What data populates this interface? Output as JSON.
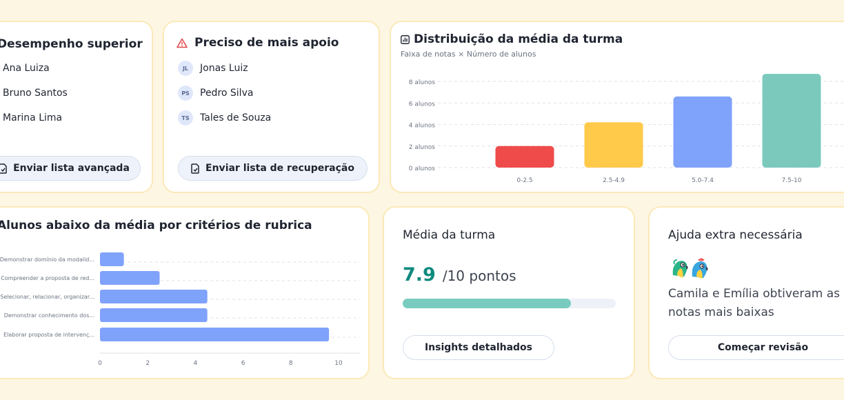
{
  "colors": {
    "page_bg": "#fdf6e3",
    "card_border": "#fbe9b7",
    "accent_teal": "#0f8a7e",
    "progress_fill": "#79cbbf",
    "bar_blue": "#7fa2fb",
    "warn_red": "#e04848"
  },
  "top_performers": {
    "title": "Desempenho superior",
    "students": [
      "Ana Luiza",
      "Bruno Santos",
      "Marina Lima"
    ],
    "button_label": "Enviar lista avançada",
    "button_icon": "document-check-icon"
  },
  "need_support": {
    "title": "Preciso de mais apoio",
    "title_icon": "warning-triangle-icon",
    "students": [
      {
        "initials": "JL",
        "name": "Jonas Luiz"
      },
      {
        "initials": "PS",
        "name": "Pedro Silva"
      },
      {
        "initials": "TS",
        "name": "Tales de Souza"
      }
    ],
    "button_label": "Enviar lista de recuperação",
    "button_icon": "document-check-icon"
  },
  "distribution": {
    "title": "Distribuição da média da turma",
    "title_icon": "bar-chart-icon",
    "subtitle": "Faixa de notas × Número de alunos"
  },
  "rubric": {
    "title": "Alunos abaixo da média por critérios de rubrica"
  },
  "class_average": {
    "title": "Média da turma",
    "score": "7.9",
    "score_suffix": "/10 pontos",
    "progress": 0.79,
    "button_label": "Insights detalhados"
  },
  "extra_help": {
    "title": "Ajuda extra necessária",
    "mascot_icon": "parrot-mascots-icon",
    "message": "Camila e Emília obtiveram as notas mais baixas",
    "button_label": "Começar revisão"
  },
  "chart_data": [
    {
      "type": "bar",
      "categories": [
        "0-2.5",
        "2.5-4.9",
        "5.0-7.4",
        "7.5-10"
      ],
      "values": [
        2,
        4.2,
        6.6,
        8.7
      ],
      "colors": [
        "#ef4b4b",
        "#ffc94a",
        "#7fa2fb",
        "#7bc9bd"
      ],
      "ytick_labels": [
        "0 alunos",
        "2 alunos",
        "4 alunos",
        "6 alunos",
        "8 alunos"
      ],
      "yticks": [
        0,
        2,
        4,
        6,
        8
      ],
      "ylim": [
        0,
        9
      ],
      "grid": true
    },
    {
      "type": "bar",
      "orientation": "horizontal",
      "categories": [
        "Demonstrar domínio da modalid...",
        "Compreender a proposta de red...",
        "Selecionar, relacionar, organizar...",
        "Demonstrar conhecimento dos...",
        "Elaborar proposta de intervenç..."
      ],
      "values": [
        1,
        2.5,
        4.5,
        4.5,
        9.6
      ],
      "xticks": [
        0,
        2,
        4,
        6,
        8,
        10
      ],
      "xlim": [
        0,
        10
      ],
      "color": "#7fa2fb",
      "grid": true
    }
  ]
}
